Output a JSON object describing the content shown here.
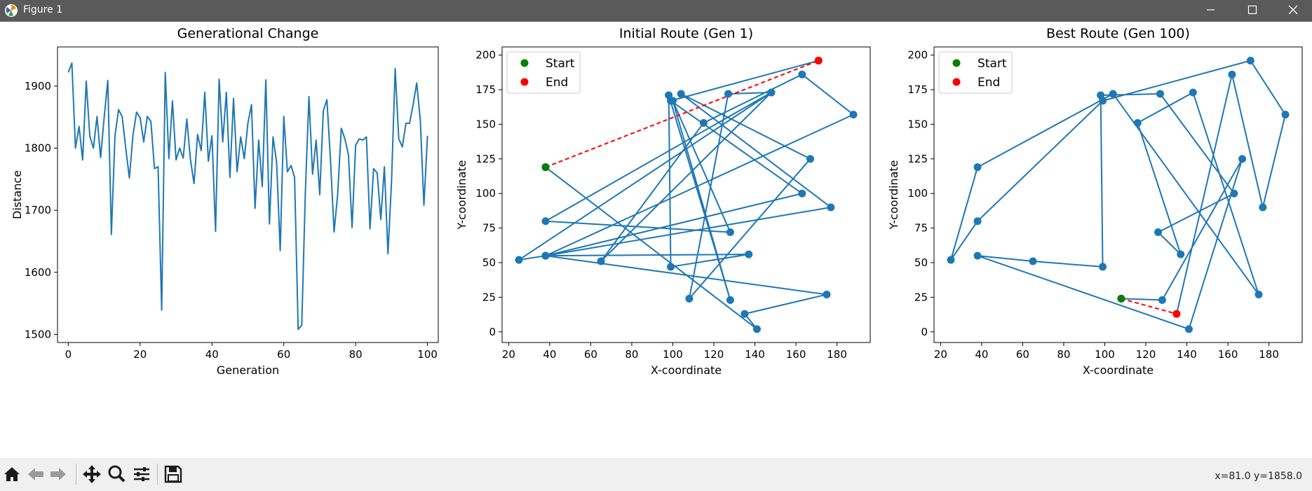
{
  "window": {
    "title": "Figure 1"
  },
  "toolbar": {
    "buttons": [
      "home",
      "back",
      "forward",
      "pan",
      "zoom",
      "configure-subplots",
      "save"
    ],
    "coords": "x=81.0 y=1858.0"
  },
  "chart_data": [
    {
      "type": "line",
      "title": "Generational Change",
      "xlabel": "Generation",
      "ylabel": "Distance",
      "xlim": [
        -3,
        103
      ],
      "ylim": [
        1487,
        1963
      ],
      "xticks": [
        0,
        20,
        40,
        60,
        80,
        100
      ],
      "yticks": [
        1500,
        1600,
        1700,
        1800,
        1900
      ],
      "color": "#1f77b4",
      "series": [
        {
          "x": [
            0,
            1,
            2,
            3,
            4,
            5,
            6,
            7,
            8,
            9,
            10,
            11,
            12,
            13,
            14,
            15,
            16,
            17,
            18,
            19,
            20,
            21,
            22,
            23,
            24,
            25,
            26,
            27,
            28,
            29,
            30,
            31,
            32,
            33,
            34,
            35,
            36,
            37,
            38,
            39,
            40,
            41,
            42,
            43,
            44,
            45,
            46,
            47,
            48,
            49,
            50,
            51,
            52,
            53,
            54,
            55,
            56,
            57,
            58,
            59,
            60,
            61,
            62,
            63,
            64,
            65,
            66,
            67,
            68,
            69,
            70,
            71,
            72,
            73,
            74,
            75,
            76,
            77,
            78,
            79,
            80,
            81,
            82,
            83,
            84,
            85,
            86,
            87,
            88,
            89,
            90,
            91,
            92,
            93,
            94,
            95,
            96,
            97,
            98,
            99,
            100
          ],
          "y": [
            1922,
            1937,
            1800,
            1835,
            1781,
            1908,
            1819,
            1800,
            1851,
            1785,
            1850,
            1909,
            1661,
            1820,
            1862,
            1851,
            1800,
            1752,
            1820,
            1858,
            1849,
            1810,
            1851,
            1843,
            1767,
            1770,
            1539,
            1922,
            1783,
            1876,
            1781,
            1800,
            1784,
            1847,
            1782,
            1743,
            1822,
            1796,
            1890,
            1779,
            1820,
            1666,
            1911,
            1810,
            1890,
            1753,
            1880,
            1762,
            1818,
            1783,
            1840,
            1870,
            1703,
            1813,
            1738,
            1910,
            1678,
            1818,
            1777,
            1635,
            1851,
            1762,
            1772,
            1753,
            1508,
            1515,
            1730,
            1883,
            1758,
            1813,
            1725,
            1860,
            1878,
            1780,
            1665,
            1726,
            1832,
            1815,
            1789,
            1672,
            1805,
            1815,
            1813,
            1818,
            1670,
            1767,
            1760,
            1685,
            1770,
            1630,
            1748,
            1928,
            1815,
            1802,
            1840,
            1840,
            1870,
            1905,
            1845,
            1708,
            1820
          ]
        }
      ]
    },
    {
      "type": "scatter",
      "title": "Initial Route (Gen 1)",
      "xlabel": "X-coordinate",
      "ylabel": "Y-coordinate",
      "xlim": [
        16.8,
        196.2
      ],
      "ylim": [
        -7.7,
        205.9
      ],
      "xticks": [
        20,
        40,
        60,
        80,
        100,
        120,
        140,
        160,
        180
      ],
      "yticks": [
        0,
        25,
        50,
        75,
        100,
        125,
        150,
        175,
        200
      ],
      "legend": {
        "placement": "upper-left",
        "entries": [
          {
            "label": "Start",
            "color": "#008000"
          },
          {
            "label": "End",
            "color": "#ff0000"
          }
        ]
      },
      "route_color": "#1f77b4",
      "closing_color": "#ff0000",
      "route": [
        [
          38,
          119
        ],
        [
          141,
          2
        ],
        [
          135,
          13
        ],
        [
          175,
          27
        ],
        [
          38,
          55
        ],
        [
          137,
          56
        ],
        [
          99,
          47
        ],
        [
          98,
          171
        ],
        [
          128,
          23
        ],
        [
          100,
          167
        ],
        [
          128,
          72
        ],
        [
          38,
          80
        ],
        [
          148,
          173
        ],
        [
          65,
          51
        ],
        [
          115,
          151
        ],
        [
          163,
          186
        ],
        [
          188,
          157
        ],
        [
          38,
          55
        ],
        [
          25,
          52
        ],
        [
          148,
          173
        ],
        [
          127,
          172
        ],
        [
          108,
          24
        ],
        [
          167,
          125
        ],
        [
          104,
          172
        ],
        [
          177,
          90
        ],
        [
          38,
          55
        ],
        [
          163,
          100
        ],
        [
          99,
          167
        ],
        [
          171,
          196
        ]
      ],
      "start": [
        38,
        119
      ],
      "end": [
        171,
        196
      ]
    },
    {
      "type": "scatter",
      "title": "Best Route (Gen 100)",
      "xlabel": "X-coordinate",
      "ylabel": "Y-coordinate",
      "xlim": [
        16.8,
        196.2
      ],
      "ylim": [
        -7.7,
        205.9
      ],
      "xticks": [
        20,
        40,
        60,
        80,
        100,
        120,
        140,
        160,
        180
      ],
      "yticks": [
        0,
        25,
        50,
        75,
        100,
        125,
        150,
        175,
        200
      ],
      "legend": {
        "placement": "upper-left",
        "entries": [
          {
            "label": "Start",
            "color": "#008000"
          },
          {
            "label": "End",
            "color": "#ff0000"
          }
        ]
      },
      "route_color": "#1f77b4",
      "closing_color": "#ff0000",
      "route": [
        [
          108,
          24
        ],
        [
          128,
          23
        ],
        [
          167,
          125
        ],
        [
          141,
          2
        ],
        [
          38,
          55
        ],
        [
          65,
          51
        ],
        [
          99,
          47
        ],
        [
          98,
          171
        ],
        [
          127,
          172
        ],
        [
          163,
          100
        ],
        [
          126,
          72
        ],
        [
          137,
          56
        ],
        [
          116,
          151
        ],
        [
          143,
          173
        ],
        [
          175,
          27
        ],
        [
          104,
          172
        ],
        [
          38,
          119
        ],
        [
          25,
          52
        ],
        [
          38,
          80
        ],
        [
          99,
          167
        ],
        [
          171,
          196
        ],
        [
          188,
          157
        ],
        [
          177,
          90
        ],
        [
          162,
          186
        ],
        [
          135,
          13
        ]
      ],
      "start": [
        108,
        24
      ],
      "end": [
        135,
        13
      ]
    }
  ]
}
